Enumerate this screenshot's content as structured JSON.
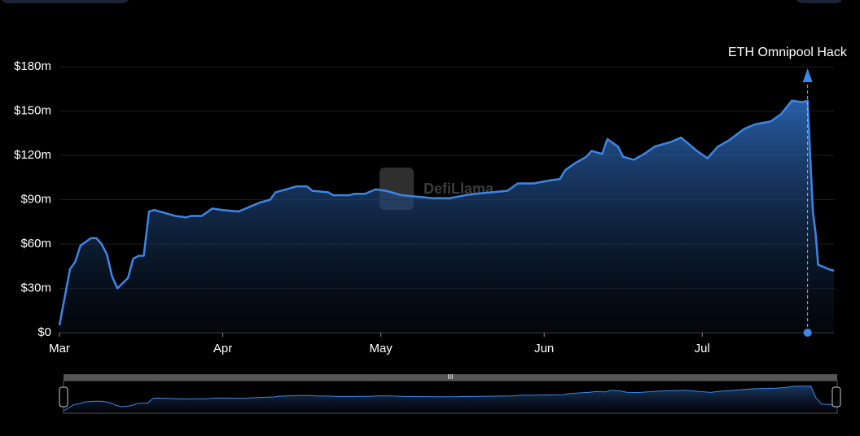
{
  "chart_data": {
    "type": "area",
    "color": "#3d86e6",
    "watermark": "DefiLlama",
    "x": [
      0,
      2,
      3,
      4,
      6,
      7,
      8,
      9,
      10,
      11,
      13,
      14,
      15,
      16,
      17,
      18,
      20,
      22,
      24,
      25,
      27,
      29,
      31,
      34,
      36,
      38,
      40,
      41,
      43,
      45,
      47,
      48,
      51,
      52,
      55,
      56,
      58,
      60,
      62,
      65,
      68,
      71,
      74,
      77,
      79,
      82,
      85,
      87,
      90,
      93,
      95,
      96,
      98,
      100,
      101,
      103,
      104,
      106,
      107,
      109,
      111,
      113,
      116,
      118,
      121,
      123,
      125,
      127,
      130,
      132,
      135,
      137,
      139,
      141,
      142,
      143,
      143.5,
      144,
      146,
      147
    ],
    "values": [
      5,
      43,
      48,
      59,
      64,
      64,
      60,
      53,
      38,
      30,
      37,
      50,
      52,
      52,
      82,
      83,
      81,
      79,
      78,
      79,
      79,
      84,
      83,
      82,
      85,
      88,
      90,
      95,
      97,
      99,
      99,
      96,
      95,
      93,
      93,
      94,
      94,
      97,
      96,
      93,
      92,
      91,
      91,
      93,
      94,
      95,
      96,
      101,
      101,
      103,
      104,
      110,
      115,
      119,
      123,
      121,
      131,
      126,
      119,
      117,
      121,
      126,
      129,
      132,
      123,
      118,
      126,
      130,
      138,
      141,
      143,
      148,
      157,
      156,
      157,
      82,
      68,
      46,
      43,
      42
    ],
    "xlim": [
      0,
      147
    ],
    "xticks": [
      {
        "value": 0,
        "label": "Mar"
      },
      {
        "value": 31,
        "label": "Apr"
      },
      {
        "value": 61,
        "label": "May"
      },
      {
        "value": 92,
        "label": "Jun"
      },
      {
        "value": 122,
        "label": "Jul"
      }
    ],
    "ylim": [
      0,
      180
    ],
    "yticks": [
      {
        "value": 0,
        "label": "$0"
      },
      {
        "value": 30,
        "label": "$30m"
      },
      {
        "value": 60,
        "label": "$60m"
      },
      {
        "value": 90,
        "label": "$90m"
      },
      {
        "value": 120,
        "label": "$120m"
      },
      {
        "value": 150,
        "label": "$150m"
      },
      {
        "value": 180,
        "label": "$180m"
      }
    ],
    "grid": true,
    "annotation": {
      "x": 142,
      "label": "ETH Omnipool Hack"
    }
  }
}
